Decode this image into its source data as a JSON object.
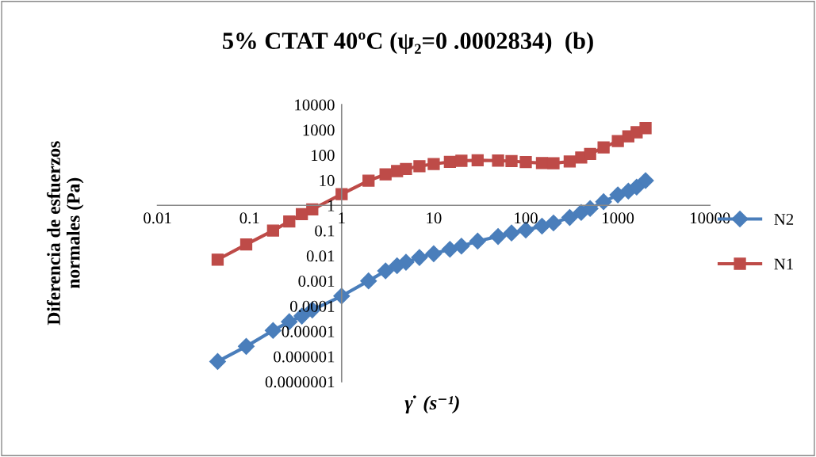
{
  "chart_data": {
    "type": "line",
    "title": "5% CTAT 40ºC (ψ₂=0 .0002834)  (b)",
    "xlabel": "γ̇  (s⁻¹)",
    "ylabel": "Diferencia de esfuerzos\nnormales (Pa)",
    "x": [
      0.045,
      0.092,
      0.18,
      0.27,
      0.37,
      0.48,
      1,
      1.96,
      3,
      4,
      5,
      7,
      10,
      15,
      20,
      30,
      50,
      70,
      100,
      150,
      200,
      300,
      400,
      500,
      700,
      1000,
      1300,
      1600,
      2000
    ],
    "series": [
      {
        "name": "N2",
        "color": "#4a7ebb",
        "marker": "diamond",
        "values": [
          6.3e-07,
          2.5e-06,
          1.07e-05,
          2.4e-05,
          4e-05,
          7e-05,
          0.00025,
          0.001,
          0.0025,
          0.004,
          0.0055,
          0.0085,
          0.012,
          0.018,
          0.024,
          0.038,
          0.058,
          0.08,
          0.105,
          0.15,
          0.2,
          0.33,
          0.52,
          0.75,
          1.4,
          2.6,
          3.7,
          5.3,
          9.6
        ]
      },
      {
        "name": "N1",
        "color": "#be4b48",
        "marker": "square",
        "values": [
          0.007,
          0.028,
          0.1,
          0.23,
          0.45,
          0.69,
          2.8,
          9.6,
          17,
          23,
          28,
          36,
          44,
          53,
          59,
          62,
          60,
          57,
          52,
          48,
          47,
          55,
          80,
          110,
          200,
          360,
          550,
          800,
          1170
        ]
      }
    ],
    "log": "xy",
    "xlim": [
      0.01,
      10000
    ],
    "ylim": [
      1e-07,
      10000
    ],
    "xticks": [
      0.01,
      0.1,
      1,
      10,
      100,
      1000,
      10000
    ],
    "yticks": [
      {
        "value": 1e-07,
        "label": "0.0000001"
      },
      {
        "value": 1e-06,
        "label": "0.000001"
      },
      {
        "value": 1e-05,
        "label": "0.00001"
      },
      {
        "value": 0.0001,
        "label": "0.0001"
      },
      0.001,
      0.01,
      0.1,
      1,
      10,
      100,
      1000,
      10000
    ],
    "grid": false,
    "legend": "right",
    "line_style": "solid"
  }
}
